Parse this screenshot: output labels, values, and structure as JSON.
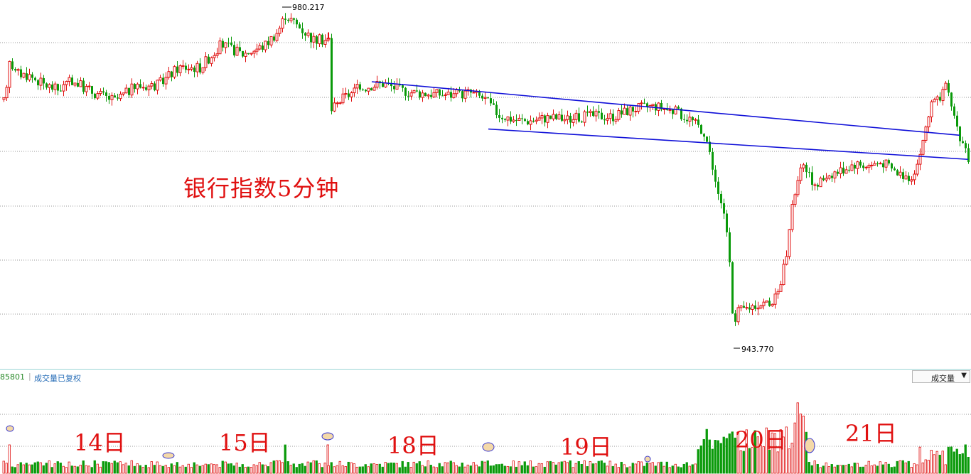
{
  "chart_data": {
    "type": "candlestick",
    "title": "银行指数5分钟",
    "price_high_label": "980.217",
    "price_low_label": "943.770",
    "price_range": [
      942,
      981.5
    ],
    "day_labels": [
      "14日",
      "15日",
      "18日",
      "19日",
      "20日",
      "21日"
    ],
    "volume_panel": {
      "code_text": "85801",
      "label": "成交量已复权",
      "selector_label": "成交量",
      "selector_icon": "chevron-down-icon"
    },
    "trendlines": [
      {
        "name": "upper",
        "from": [
          523,
          972.5
        ],
        "to": [
          1350,
          966.5
        ]
      },
      {
        "name": "lower",
        "from": [
          687,
          967.2
        ],
        "to": [
          1362,
          963.8
        ]
      }
    ],
    "series": {
      "close_approx": [
        [
          5,
          970.2
        ],
        [
          12,
          975.1
        ],
        [
          20,
          973.5
        ],
        [
          40,
          973.2
        ],
        [
          60,
          972.2
        ],
        [
          80,
          971.6
        ],
        [
          100,
          972.6
        ],
        [
          130,
          971.3
        ],
        [
          160,
          970.4
        ],
        [
          190,
          972.0
        ],
        [
          220,
          972.1
        ],
        [
          250,
          974.1
        ],
        [
          280,
          974.1
        ],
        [
          310,
          976.7
        ],
        [
          340,
          975.6
        ],
        [
          370,
          976.5
        ],
        [
          390,
          978.2
        ],
        [
          400,
          980.0
        ],
        [
          420,
          978.6
        ],
        [
          440,
          977.2
        ],
        [
          455,
          977.2
        ],
        [
          462,
          969.0
        ],
        [
          480,
          970.6
        ],
        [
          500,
          971.6
        ],
        [
          520,
          972.1
        ],
        [
          540,
          972.3
        ],
        [
          560,
          971.6
        ],
        [
          580,
          971.3
        ],
        [
          600,
          971.2
        ],
        [
          640,
          971.0
        ],
        [
          660,
          971.3
        ],
        [
          680,
          970.6
        ],
        [
          700,
          968.8
        ],
        [
          720,
          968.3
        ],
        [
          740,
          968.1
        ],
        [
          770,
          968.5
        ],
        [
          800,
          968.3
        ],
        [
          830,
          968.7
        ],
        [
          860,
          968.6
        ],
        [
          890,
          969.5
        ],
        [
          920,
          969.8
        ],
        [
          950,
          969.1
        ],
        [
          970,
          968.3
        ],
        [
          990,
          966.8
        ],
        [
          1000,
          963.5
        ],
        [
          1010,
          959.3
        ],
        [
          1020,
          956.9
        ],
        [
          1030,
          946.5
        ],
        [
          1045,
          947.0
        ],
        [
          1060,
          947.5
        ],
        [
          1080,
          947.8
        ],
        [
          1095,
          948.5
        ],
        [
          1105,
          953.5
        ],
        [
          1115,
          959.5
        ],
        [
          1125,
          962.5
        ],
        [
          1135,
          963.0
        ],
        [
          1145,
          960.5
        ],
        [
          1160,
          962.0
        ],
        [
          1180,
          962.5
        ],
        [
          1200,
          963.3
        ],
        [
          1220,
          963.1
        ],
        [
          1240,
          963.5
        ],
        [
          1260,
          962.3
        ],
        [
          1280,
          961.8
        ],
        [
          1290,
          963.5
        ],
        [
          1300,
          967.0
        ],
        [
          1310,
          970.3
        ],
        [
          1320,
          970.3
        ],
        [
          1330,
          972.0
        ],
        [
          1340,
          969.0
        ],
        [
          1350,
          966.0
        ],
        [
          1360,
          963.8
        ]
      ]
    },
    "volume_highlights": [
      "14日-open",
      "15日-late",
      "15日-close",
      "18日-late",
      "19日-late",
      "20日-late"
    ],
    "colors": {
      "up": "#e01010",
      "down": "#0a9a0a",
      "trendline": "#1010d8",
      "grid": "#9a9a9a",
      "annotation": "#e01010",
      "highlight_fill": "#f4d9a8",
      "highlight_stroke": "#3a3ad0"
    }
  }
}
